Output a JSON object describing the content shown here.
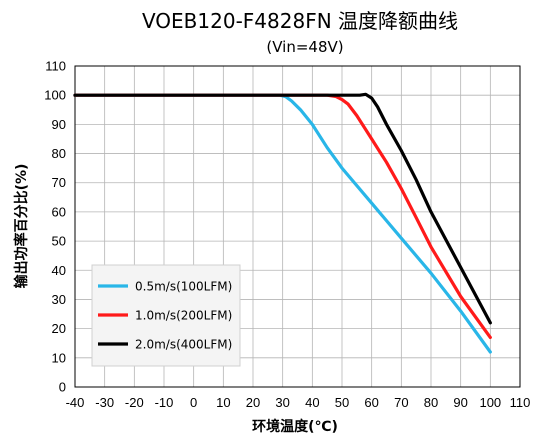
{
  "chart_data": {
    "type": "line",
    "title": "VOEB120-F4828FN 温度降额曲线",
    "subtitle": "(Vin=48V)",
    "xlabel": "环境温度(℃)",
    "ylabel": "输出功率百分比(%)",
    "xlim": [
      -40,
      110
    ],
    "ylim": [
      0,
      110
    ],
    "xticks": [
      -40,
      -30,
      -20,
      -10,
      0,
      10,
      20,
      30,
      40,
      50,
      60,
      70,
      80,
      90,
      100,
      110
    ],
    "yticks": [
      0,
      10,
      20,
      30,
      40,
      50,
      60,
      70,
      80,
      90,
      100,
      110
    ],
    "grid": true,
    "legend_position": "bottom-left",
    "series": [
      {
        "name": "0.5m/s(100LFM)",
        "color": "#29b6e8",
        "points": [
          [
            -40,
            100
          ],
          [
            29,
            100
          ],
          [
            31,
            99.5
          ],
          [
            33,
            98
          ],
          [
            36,
            95
          ],
          [
            40,
            90
          ],
          [
            45,
            82
          ],
          [
            50,
            75
          ],
          [
            60,
            63
          ],
          [
            70,
            51
          ],
          [
            80,
            39
          ],
          [
            90,
            26
          ],
          [
            100,
            12
          ]
        ]
      },
      {
        "name": "1.0m/s(200LFM)",
        "color": "#ff1a1a",
        "points": [
          [
            -40,
            100
          ],
          [
            45,
            100
          ],
          [
            48,
            99.5
          ],
          [
            50,
            98.5
          ],
          [
            52,
            97
          ],
          [
            55,
            93
          ],
          [
            60,
            85
          ],
          [
            65,
            77
          ],
          [
            70,
            68
          ],
          [
            75,
            58
          ],
          [
            80,
            48
          ],
          [
            90,
            31
          ],
          [
            100,
            17
          ]
        ]
      },
      {
        "name": "2.0m/s(400LFM)",
        "color": "#000000",
        "points": [
          [
            -40,
            100
          ],
          [
            56,
            100
          ],
          [
            58,
            100.3
          ],
          [
            60,
            99
          ],
          [
            62,
            96
          ],
          [
            65,
            90
          ],
          [
            70,
            81
          ],
          [
            75,
            71
          ],
          [
            80,
            60
          ],
          [
            90,
            41
          ],
          [
            100,
            22
          ]
        ]
      }
    ]
  }
}
